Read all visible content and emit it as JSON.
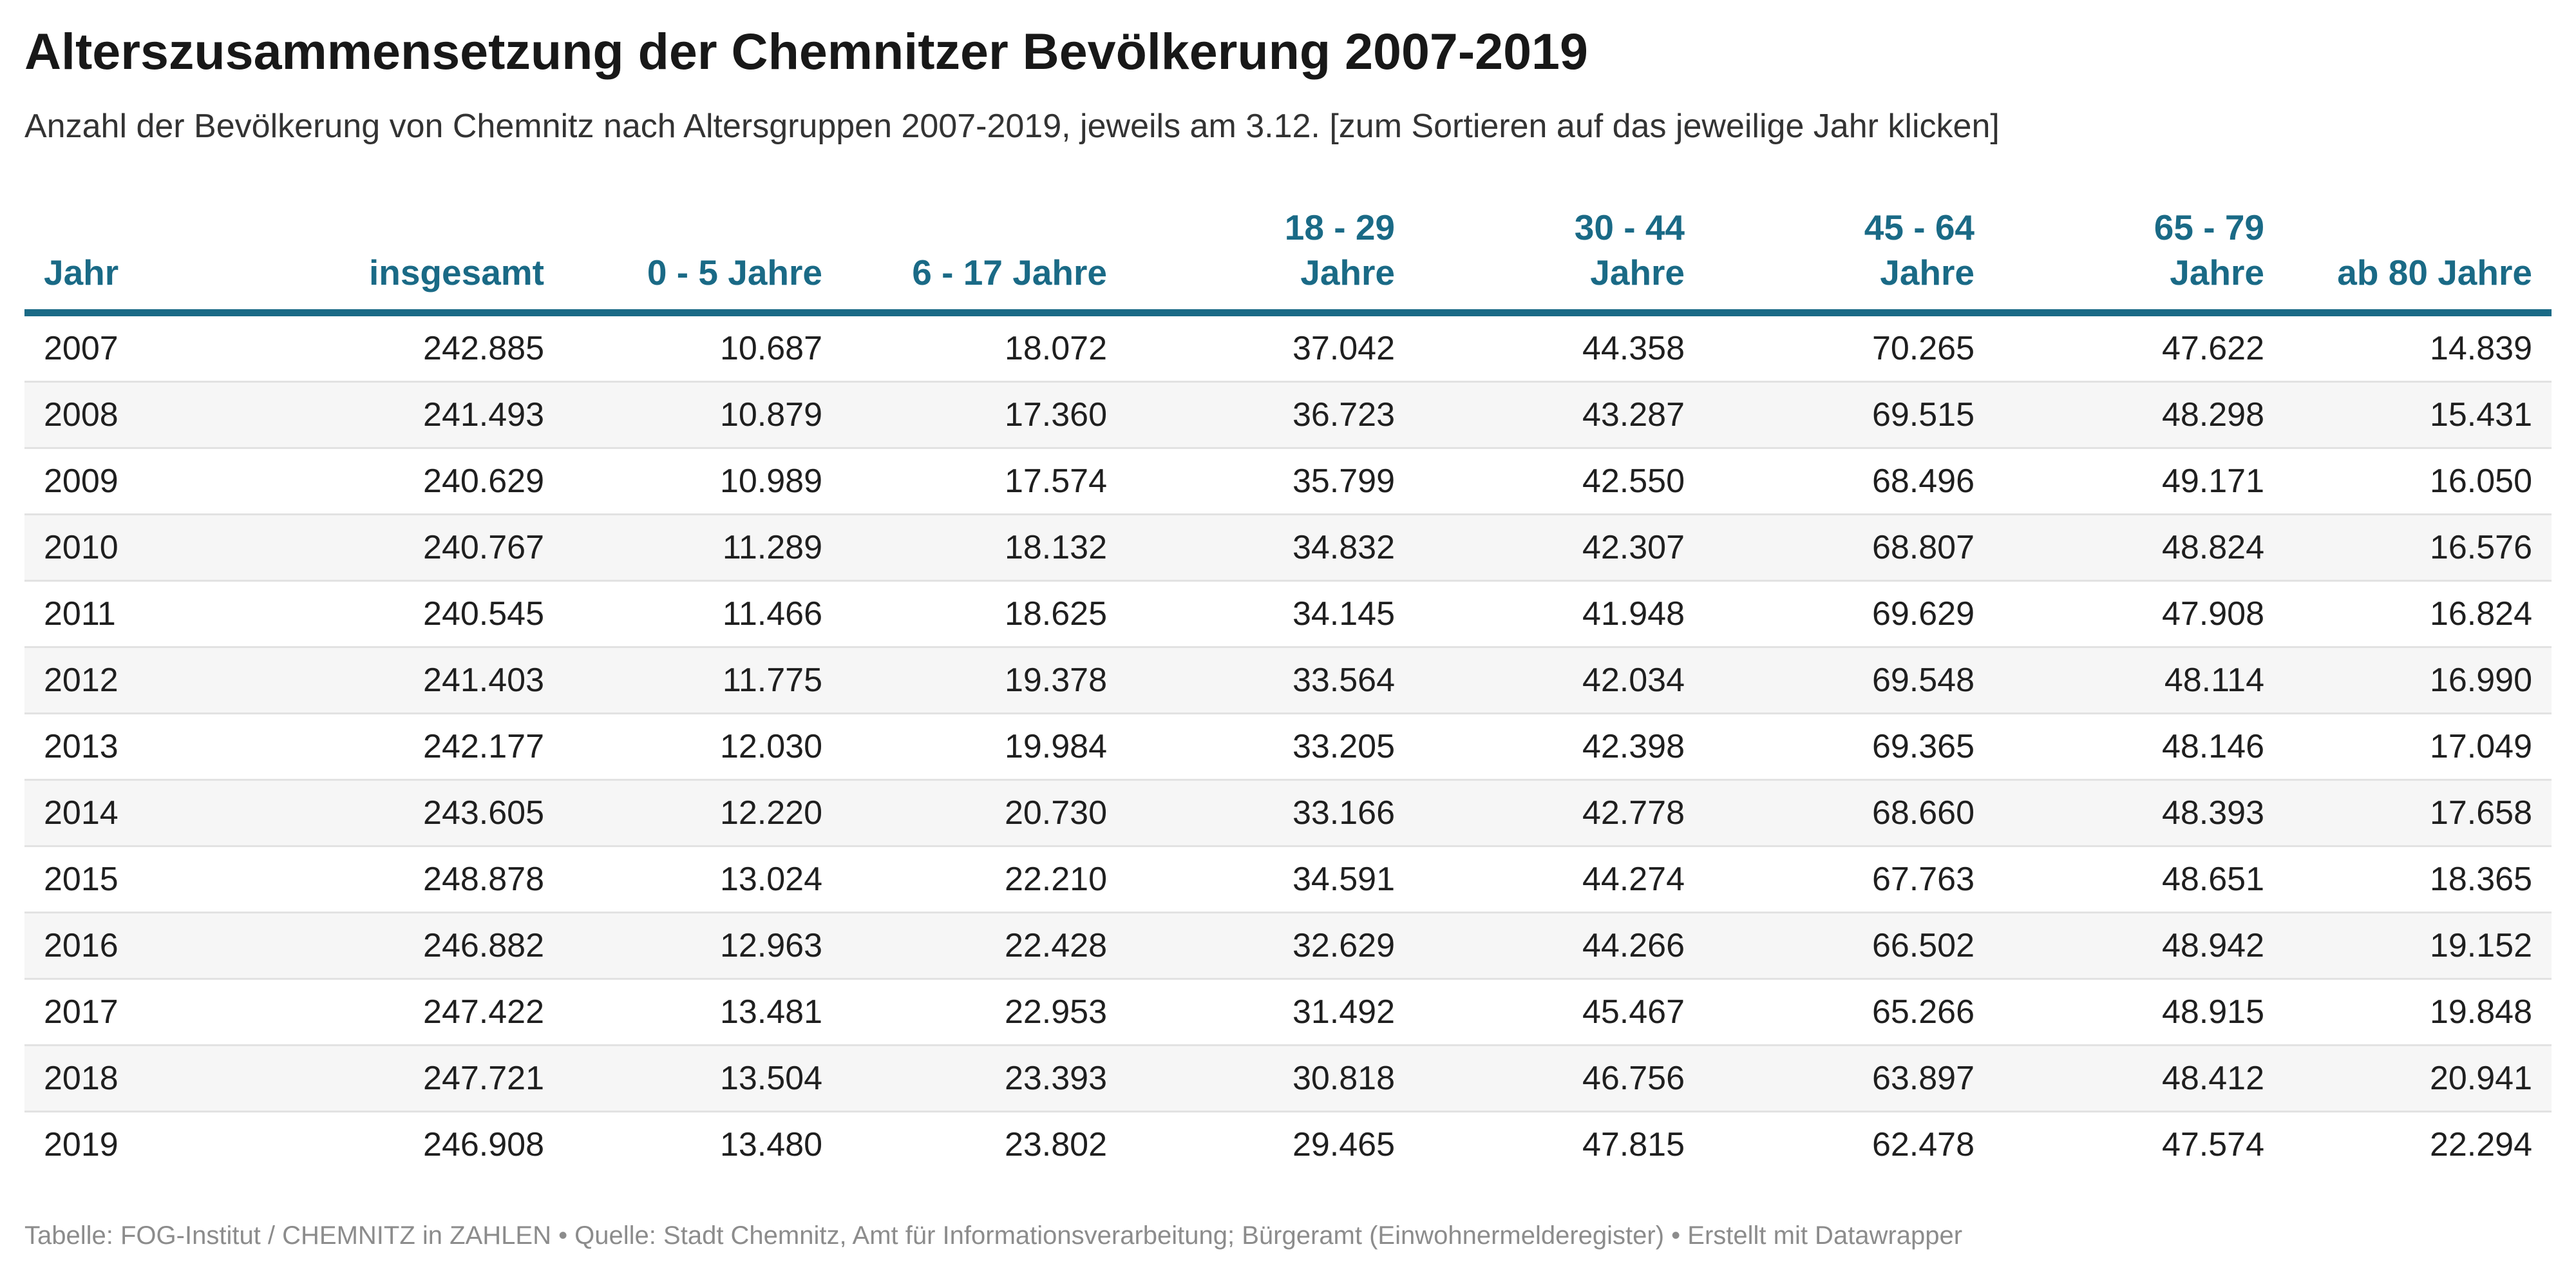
{
  "title": "Alterszusammensetzung der Chemnitzer Bevölkerung 2007-2019",
  "subtitle": "Anzahl der Bevölkerung von Chemnitz nach Altersgruppen 2007-2019, jeweils am 3.12. [zum Sortieren auf das jeweilige Jahr klicken]",
  "footer": "Tabelle: FOG-Institut / CHEMNITZ in ZAHLEN • Quelle: Stadt Chemnitz, Amt für Informationsverarbeitung; Bürgeramt (Einwohnermelderegister) • Erstellt mit Datawrapper",
  "colors": {
    "header": "#1a6a86",
    "title": "#181818",
    "footer": "#8c8c8c",
    "stripe": "#f6f6f6"
  },
  "chart_data": {
    "type": "table",
    "title": "Alterszusammensetzung der Chemnitzer Bevölkerung 2007-2019",
    "columns": [
      [
        "Jahr"
      ],
      [
        "insgesamt"
      ],
      [
        "0 - 5 Jahre"
      ],
      [
        "6 - 17 Jahre"
      ],
      [
        "18 - 29",
        "Jahre"
      ],
      [
        "30 - 44",
        "Jahre"
      ],
      [
        "45 - 64",
        "Jahre"
      ],
      [
        "65 - 79",
        "Jahre"
      ],
      [
        "ab 80 Jahre"
      ]
    ],
    "rows": [
      [
        "2007",
        "242.885",
        "10.687",
        "18.072",
        "37.042",
        "44.358",
        "70.265",
        "47.622",
        "14.839"
      ],
      [
        "2008",
        "241.493",
        "10.879",
        "17.360",
        "36.723",
        "43.287",
        "69.515",
        "48.298",
        "15.431"
      ],
      [
        "2009",
        "240.629",
        "10.989",
        "17.574",
        "35.799",
        "42.550",
        "68.496",
        "49.171",
        "16.050"
      ],
      [
        "2010",
        "240.767",
        "11.289",
        "18.132",
        "34.832",
        "42.307",
        "68.807",
        "48.824",
        "16.576"
      ],
      [
        "2011",
        "240.545",
        "11.466",
        "18.625",
        "34.145",
        "41.948",
        "69.629",
        "47.908",
        "16.824"
      ],
      [
        "2012",
        "241.403",
        "11.775",
        "19.378",
        "33.564",
        "42.034",
        "69.548",
        "48.114",
        "16.990"
      ],
      [
        "2013",
        "242.177",
        "12.030",
        "19.984",
        "33.205",
        "42.398",
        "69.365",
        "48.146",
        "17.049"
      ],
      [
        "2014",
        "243.605",
        "12.220",
        "20.730",
        "33.166",
        "42.778",
        "68.660",
        "48.393",
        "17.658"
      ],
      [
        "2015",
        "248.878",
        "13.024",
        "22.210",
        "34.591",
        "44.274",
        "67.763",
        "48.651",
        "18.365"
      ],
      [
        "2016",
        "246.882",
        "12.963",
        "22.428",
        "32.629",
        "44.266",
        "66.502",
        "48.942",
        "19.152"
      ],
      [
        "2017",
        "247.422",
        "13.481",
        "22.953",
        "31.492",
        "45.467",
        "65.266",
        "48.915",
        "19.848"
      ],
      [
        "2018",
        "247.721",
        "13.504",
        "23.393",
        "30.818",
        "46.756",
        "63.897",
        "48.412",
        "20.941"
      ],
      [
        "2019",
        "246.908",
        "13.480",
        "23.802",
        "29.465",
        "47.815",
        "62.478",
        "47.574",
        "22.294"
      ]
    ]
  }
}
